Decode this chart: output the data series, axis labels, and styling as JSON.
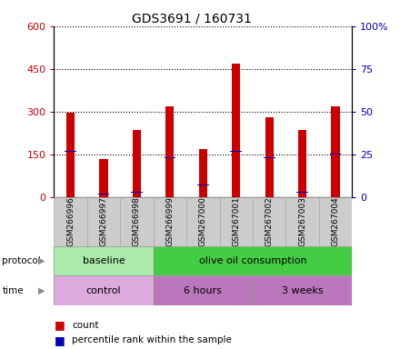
{
  "title": "GDS3691 / 160731",
  "samples": [
    "GSM266996",
    "GSM266997",
    "GSM266998",
    "GSM266999",
    "GSM267000",
    "GSM267001",
    "GSM267002",
    "GSM267003",
    "GSM267004"
  ],
  "count_values": [
    295,
    135,
    235,
    320,
    170,
    470,
    280,
    235,
    318
  ],
  "percentile_values": [
    162,
    12,
    18,
    138,
    42,
    162,
    138,
    18,
    150
  ],
  "bar_width": 0.25,
  "blue_bar_width": 0.35,
  "ylim_left": [
    0,
    600
  ],
  "ylim_right": [
    0,
    100
  ],
  "yticks_left": [
    0,
    150,
    300,
    450,
    600
  ],
  "ytick_labels_right": [
    "0",
    "25",
    "50",
    "75",
    "100%"
  ],
  "yticks_right": [
    0,
    25,
    50,
    75,
    100
  ],
  "count_color": "#cc0000",
  "percentile_color": "#0000bb",
  "grid_color": "black",
  "legend_count_label": "count",
  "legend_percentile_label": "percentile rank within the sample",
  "background_color": "#ffffff",
  "tick_label_bg": "#cccccc",
  "proto_baseline_color": "#aaeaaa",
  "proto_olive_color": "#44cc44",
  "time_control_color": "#ddaadd",
  "time_other_color": "#bb77bb"
}
